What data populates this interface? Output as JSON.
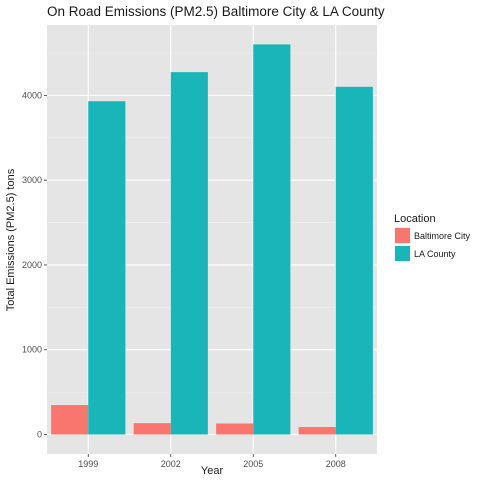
{
  "chart_data": {
    "type": "bar",
    "title": "On Road Emissions (PM2.5) Baltimore City & LA County",
    "xlabel": "Year",
    "ylabel": "Total Emissions (PM2.5) tons",
    "categories": [
      "1999",
      "2002",
      "2005",
      "2008"
    ],
    "series": [
      {
        "name": "Baltimore City",
        "color": "#f8766d",
        "values": [
          347,
          134,
          130,
          88
        ]
      },
      {
        "name": "LA County",
        "color": "#19b5b8",
        "values": [
          3931,
          4274,
          4601,
          4101
        ]
      }
    ],
    "yticks": [
      0,
      1000,
      2000,
      3000,
      4000
    ],
    "ylim": [
      -230,
      4830
    ],
    "grid": true,
    "legend": {
      "title": "Location",
      "position": "right"
    }
  }
}
